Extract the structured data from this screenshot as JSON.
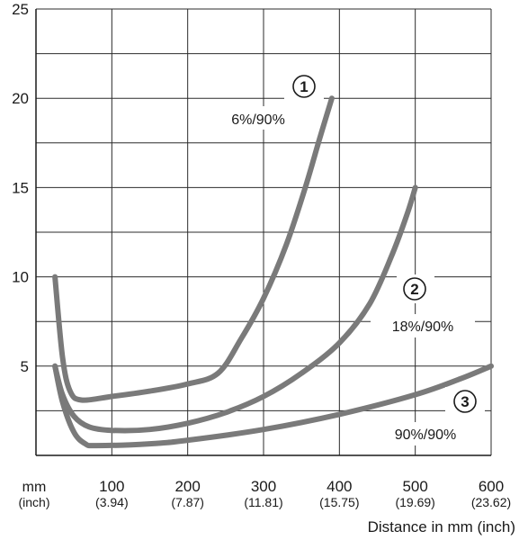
{
  "chart_data": {
    "type": "line",
    "title": "",
    "xlabel": "Distance in mm (inch)",
    "ylabel": "",
    "x_unit_label": "mm",
    "x_unit_sub_label": "(inch)",
    "xlim": [
      0,
      600
    ],
    "ylim": [
      0,
      25
    ],
    "grid": true,
    "y_ticks": [
      {
        "value": 5,
        "label": "5"
      },
      {
        "value": 10,
        "label": "10"
      },
      {
        "value": 15,
        "label": "15"
      },
      {
        "value": 20,
        "label": "20"
      },
      {
        "value": 25,
        "label": "25"
      }
    ],
    "x_ticks": [
      {
        "value": 100,
        "label": "100",
        "sub": "(3.94)"
      },
      {
        "value": 200,
        "label": "200",
        "sub": "(7.87)"
      },
      {
        "value": 300,
        "label": "300",
        "sub": "(11.81)"
      },
      {
        "value": 400,
        "label": "400",
        "sub": "(15.75)"
      },
      {
        "value": 500,
        "label": "500",
        "sub": "(19.69)"
      },
      {
        "value": 600,
        "label": "600",
        "sub": "(23.62)"
      }
    ],
    "grid_y": [
      2.5,
      5,
      7.5,
      10,
      12.5,
      15,
      17.5,
      20,
      22.5,
      25
    ],
    "grid_x": [
      100,
      200,
      300,
      400,
      500,
      600
    ],
    "color": "#7a7a7a",
    "series": [
      {
        "marker": "①",
        "name": "6%/90%",
        "points": [
          [
            25,
            10
          ],
          [
            35,
            5.5
          ],
          [
            45,
            3.6
          ],
          [
            60,
            3.1
          ],
          [
            100,
            3.3
          ],
          [
            150,
            3.6
          ],
          [
            200,
            4.0
          ],
          [
            240,
            4.6
          ],
          [
            270,
            6.5
          ],
          [
            300,
            8.8
          ],
          [
            330,
            11.8
          ],
          [
            355,
            15.0
          ],
          [
            375,
            17.9
          ],
          [
            390,
            20.0
          ]
        ]
      },
      {
        "marker": "②",
        "name": "18%/90%",
        "points": [
          [
            25,
            5.0
          ],
          [
            35,
            3.4
          ],
          [
            50,
            2.2
          ],
          [
            70,
            1.6
          ],
          [
            100,
            1.4
          ],
          [
            150,
            1.45
          ],
          [
            200,
            1.8
          ],
          [
            250,
            2.4
          ],
          [
            300,
            3.3
          ],
          [
            350,
            4.6
          ],
          [
            400,
            6.3
          ],
          [
            440,
            8.5
          ],
          [
            470,
            11.3
          ],
          [
            490,
            13.6
          ],
          [
            500,
            15.0
          ]
        ]
      },
      {
        "marker": "③",
        "name": "90%/90%",
        "points": [
          [
            25,
            5.0
          ],
          [
            35,
            3.0
          ],
          [
            50,
            1.3
          ],
          [
            65,
            0.65
          ],
          [
            80,
            0.55
          ],
          [
            150,
            0.65
          ],
          [
            200,
            0.85
          ],
          [
            300,
            1.45
          ],
          [
            400,
            2.3
          ],
          [
            500,
            3.4
          ],
          [
            560,
            4.3
          ],
          [
            600,
            5.0
          ]
        ]
      }
    ]
  }
}
